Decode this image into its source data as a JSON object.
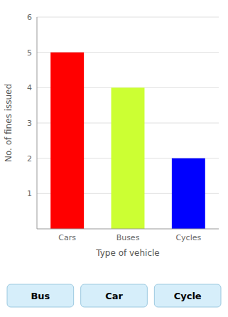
{
  "chart_data": {
    "type": "bar",
    "categories": [
      "Cars",
      "Buses",
      "Cycles"
    ],
    "values": [
      5,
      4,
      2
    ],
    "colors": [
      "#ff0000",
      "#ccff33",
      "#0000ff"
    ],
    "xlabel": "Type of vehicle",
    "ylabel": "No. of fines issued",
    "ylim": [
      0,
      6
    ],
    "yticks": [
      1,
      2,
      3,
      4,
      5,
      6
    ],
    "grid": true,
    "annotations": [
      "Bus",
      "Car",
      "Cycle"
    ]
  }
}
